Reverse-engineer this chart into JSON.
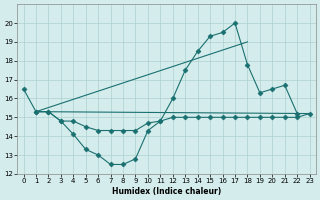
{
  "xlabel": "Humidex (Indice chaleur)",
  "background_color": "#d4ecec",
  "grid_color": "#aed0d0",
  "line_color": "#1a7070",
  "xlim": [
    -0.5,
    23.5
  ],
  "ylim": [
    12,
    21
  ],
  "yticks": [
    12,
    13,
    14,
    15,
    16,
    17,
    18,
    19,
    20
  ],
  "xticks": [
    0,
    1,
    2,
    3,
    4,
    5,
    6,
    7,
    8,
    9,
    10,
    11,
    12,
    13,
    14,
    15,
    16,
    17,
    18,
    19,
    20,
    21,
    22,
    23
  ],
  "series": [
    {
      "x": [
        0,
        1,
        2,
        3,
        4,
        5,
        6,
        7,
        8,
        9,
        10,
        11,
        12,
        13,
        14,
        15,
        16,
        17,
        18,
        19,
        20,
        21,
        22
      ],
      "y": [
        16.5,
        15.3,
        15.3,
        14.8,
        14.1,
        13.3,
        13.0,
        12.5,
        12.5,
        12.8,
        14.3,
        14.8,
        16.0,
        17.5,
        18.5,
        19.3,
        19.5,
        20.0,
        17.8,
        16.3,
        16.5,
        16.7,
        15.2
      ]
    },
    {
      "x": [
        1,
        2,
        3,
        4,
        5,
        6,
        7,
        8,
        9,
        10,
        11,
        12,
        13,
        14,
        15,
        16,
        17,
        18,
        19,
        20,
        21,
        22,
        23
      ],
      "y": [
        15.3,
        15.3,
        14.8,
        14.8,
        14.5,
        14.3,
        14.3,
        14.3,
        14.3,
        14.7,
        14.8,
        15.0,
        15.0,
        15.0,
        15.0,
        15.0,
        15.0,
        15.0,
        15.0,
        15.0,
        15.0,
        15.0,
        15.2
      ]
    },
    {
      "x": [
        1,
        18
      ],
      "y": [
        15.3,
        19.0
      ]
    },
    {
      "x": [
        1,
        23
      ],
      "y": [
        15.3,
        15.2
      ]
    }
  ]
}
